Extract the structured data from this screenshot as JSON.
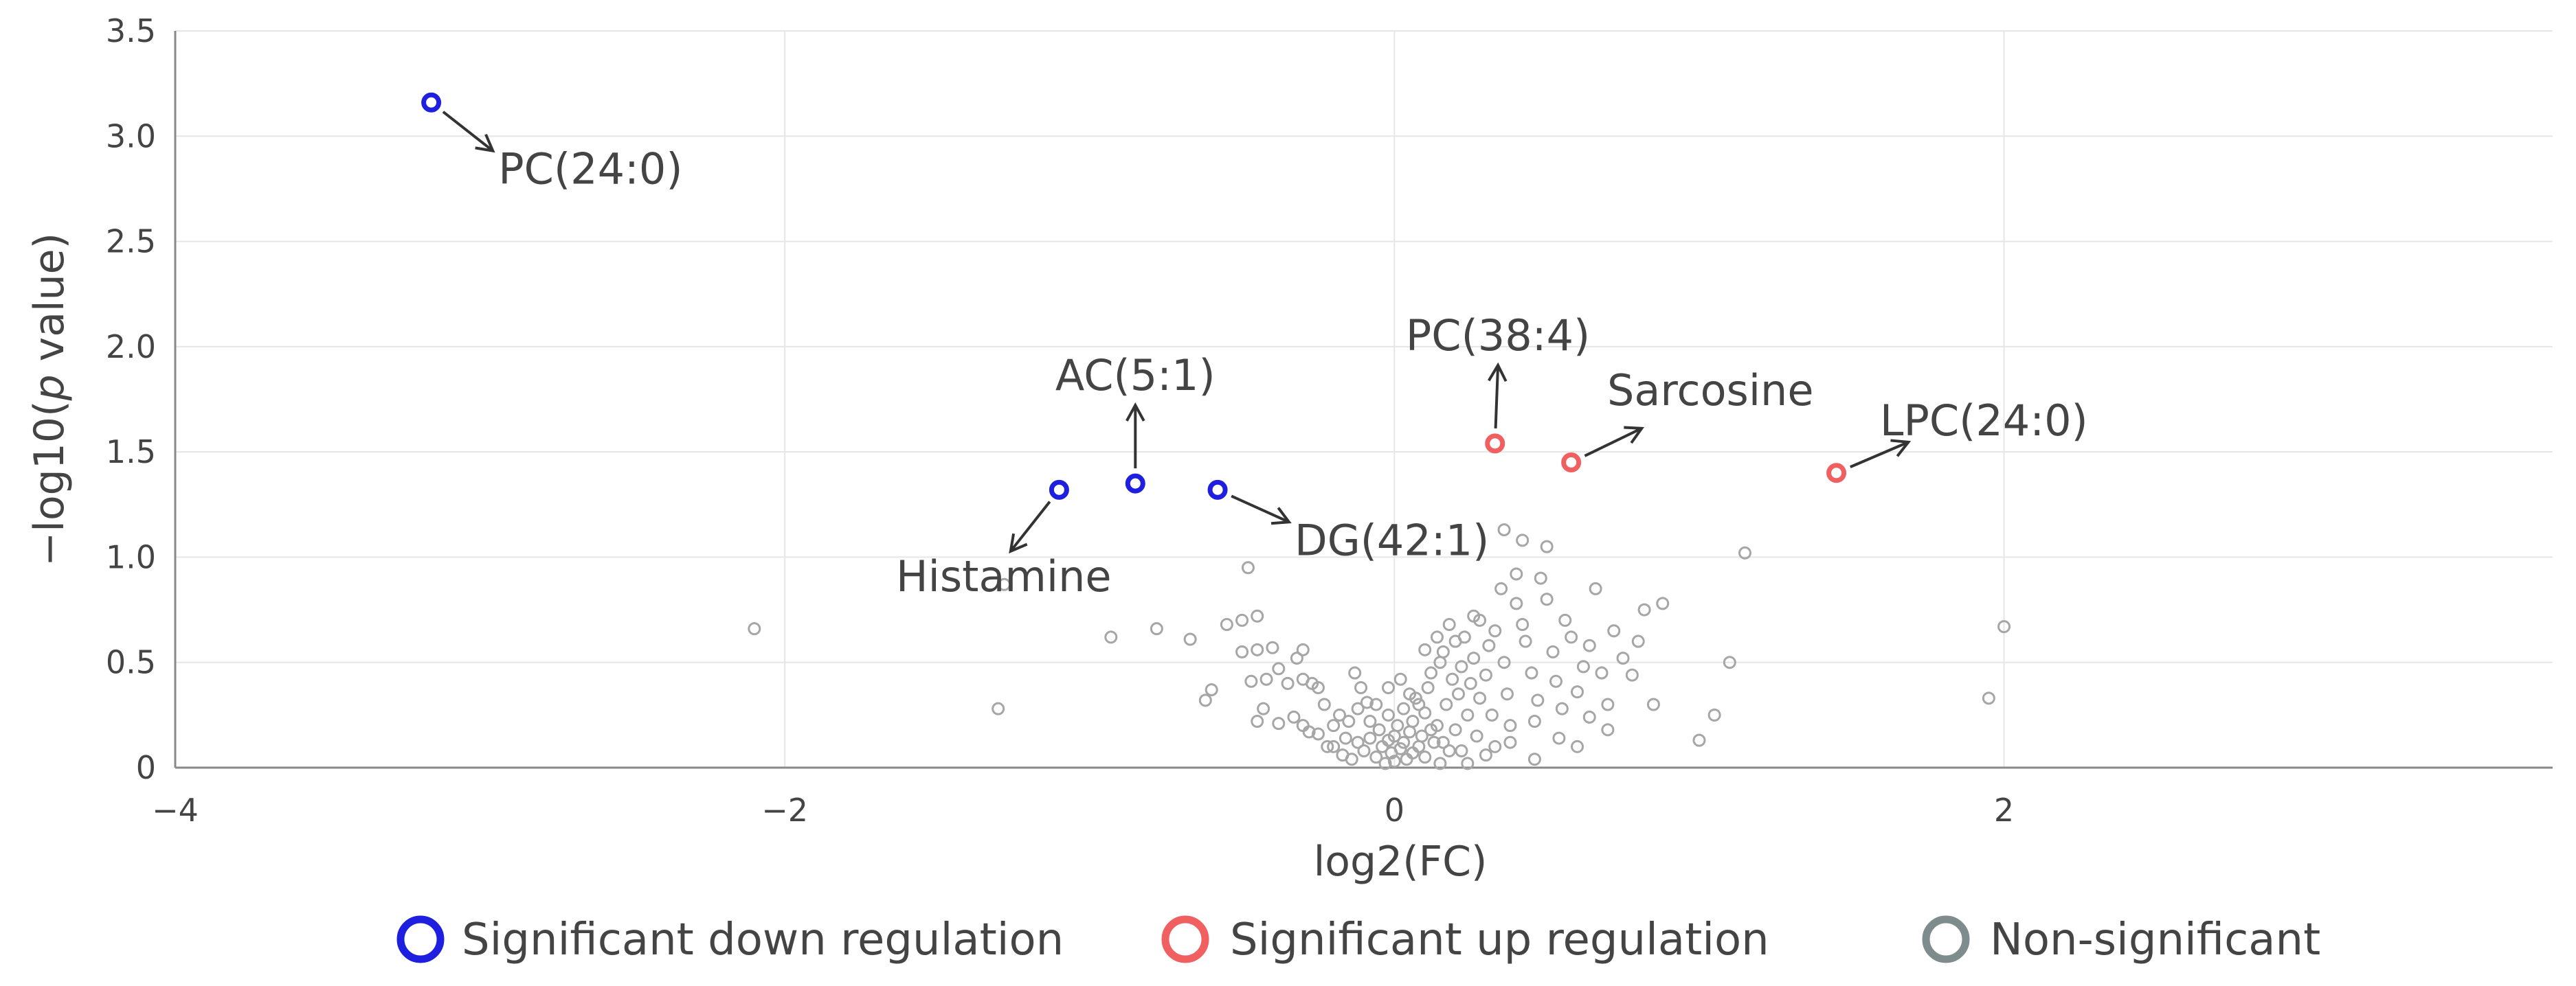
{
  "colors": {
    "down": "#1f1fe0",
    "up": "#f06060",
    "nonsig": "#a6a6a6",
    "nonsig_legend": "#7f8c8d",
    "grid": "#e6e6e6",
    "axis": "#888888",
    "text": "#444444"
  },
  "chart_data": {
    "type": "scatter",
    "title": "",
    "xlabel": "log2(FC)",
    "ylabel_parts": [
      "−log10(",
      "p",
      " value)"
    ],
    "xlim": [
      -4,
      3.8
    ],
    "ylim": [
      0,
      3.5
    ],
    "x_ticks": [
      {
        "value": -4,
        "label": "−4"
      },
      {
        "value": -2,
        "label": "−2"
      },
      {
        "value": 0,
        "label": "0"
      },
      {
        "value": 2,
        "label": "2"
      }
    ],
    "y_ticks": [
      {
        "value": 0,
        "label": "0"
      },
      {
        "value": 0.5,
        "label": "0.5"
      },
      {
        "value": 1,
        "label": "1.0"
      },
      {
        "value": 1.5,
        "label": "1.5"
      },
      {
        "value": 2,
        "label": "2.0"
      },
      {
        "value": 2.5,
        "label": "2.5"
      },
      {
        "value": 3,
        "label": "3.0"
      },
      {
        "value": 3.5,
        "label": "3.5"
      }
    ],
    "grid": true,
    "legend": {
      "position": "bottom",
      "items": [
        {
          "key": "down",
          "label": "Significant down regulation"
        },
        {
          "key": "up",
          "label": "Significant up regulation"
        },
        {
          "key": "nonsig",
          "label": "Non-significant"
        }
      ]
    },
    "significant": [
      {
        "name": "PC(24:0)",
        "x": -3.16,
        "y": 3.16,
        "group": "down",
        "label_dx": 0.22,
        "label_dy": -0.25,
        "anchor": "start"
      },
      {
        "name": "Histamine",
        "x": -1.1,
        "y": 1.32,
        "group": "down",
        "label_dx": -0.18,
        "label_dy": -0.33,
        "anchor": "middle"
      },
      {
        "name": "AC(5:1)",
        "x": -0.85,
        "y": 1.35,
        "group": "down",
        "label_dx": 0.0,
        "label_dy": 0.38,
        "anchor": "middle"
      },
      {
        "name": "DG(42:1)",
        "x": -0.58,
        "y": 1.32,
        "group": "down",
        "label_dx": 0.26,
        "label_dy": -0.17,
        "anchor": "start"
      },
      {
        "name": "PC(38:4)",
        "x": 0.33,
        "y": 1.54,
        "group": "up",
        "label_dx": 0.01,
        "label_dy": 0.38,
        "anchor": "middle"
      },
      {
        "name": "Sarcosine",
        "x": 0.58,
        "y": 1.45,
        "group": "up",
        "label_dx": 0.5,
        "label_dy": 0.35,
        "anchor": "middle"
      },
      {
        "name": "LPC(24:0)",
        "x": 1.45,
        "y": 1.4,
        "group": "up",
        "label_dx": 0.5,
        "label_dy": 0.31,
        "anchor": "middle"
      }
    ],
    "nonsignificant": [
      [
        -2.1,
        0.66
      ],
      [
        -1.3,
        0.28
      ],
      [
        -1.28,
        0.87
      ],
      [
        -0.93,
        0.62
      ],
      [
        -0.78,
        0.66
      ],
      [
        -0.67,
        0.61
      ],
      [
        -0.6,
        0.37
      ],
      [
        -0.62,
        0.32
      ],
      [
        -0.55,
        0.68
      ],
      [
        -0.5,
        0.7
      ],
      [
        -0.45,
        0.72
      ],
      [
        -0.48,
        0.95
      ],
      [
        -0.5,
        0.55
      ],
      [
        -0.45,
        0.56
      ],
      [
        -0.4,
        0.57
      ],
      [
        -0.38,
        0.47
      ],
      [
        -0.42,
        0.42
      ],
      [
        -0.47,
        0.41
      ],
      [
        -0.35,
        0.4
      ],
      [
        -0.32,
        0.52
      ],
      [
        -0.3,
        0.56
      ],
      [
        -0.3,
        0.42
      ],
      [
        -0.27,
        0.4
      ],
      [
        -0.25,
        0.38
      ],
      [
        -0.23,
        0.3
      ],
      [
        -0.43,
        0.28
      ],
      [
        -0.45,
        0.22
      ],
      [
        -0.38,
        0.21
      ],
      [
        -0.33,
        0.24
      ],
      [
        -0.3,
        0.2
      ],
      [
        -0.28,
        0.17
      ],
      [
        -0.25,
        0.16
      ],
      [
        -0.2,
        0.2
      ],
      [
        -0.18,
        0.25
      ],
      [
        -0.15,
        0.22
      ],
      [
        -0.12,
        0.28
      ],
      [
        -0.13,
        0.45
      ],
      [
        -0.11,
        0.38
      ],
      [
        -0.09,
        0.31
      ],
      [
        -0.08,
        0.22
      ],
      [
        -0.2,
        0.1
      ],
      [
        -0.17,
        0.06
      ],
      [
        -0.14,
        0.04
      ],
      [
        -0.12,
        0.12
      ],
      [
        -0.1,
        0.08
      ],
      [
        -0.08,
        0.14
      ],
      [
        -0.06,
        0.05
      ],
      [
        -0.05,
        0.18
      ],
      [
        -0.04,
        0.1
      ],
      [
        -0.03,
        0.02
      ],
      [
        -0.02,
        0.13
      ],
      [
        -0.02,
        0.25
      ],
      [
        -0.01,
        0.07
      ],
      [
        0.0,
        0.15
      ],
      [
        0.0,
        0.03
      ],
      [
        0.01,
        0.2
      ],
      [
        0.02,
        0.09
      ],
      [
        0.03,
        0.28
      ],
      [
        0.03,
        0.12
      ],
      [
        0.04,
        0.04
      ],
      [
        0.05,
        0.17
      ],
      [
        0.06,
        0.07
      ],
      [
        0.06,
        0.22
      ],
      [
        0.07,
        0.33
      ],
      [
        0.08,
        0.1
      ],
      [
        0.09,
        0.15
      ],
      [
        0.1,
        0.05
      ],
      [
        0.1,
        0.26
      ],
      [
        0.11,
        0.38
      ],
      [
        0.12,
        0.45
      ],
      [
        0.13,
        0.12
      ],
      [
        0.14,
        0.2
      ],
      [
        0.15,
        0.5
      ],
      [
        0.16,
        0.55
      ],
      [
        0.17,
        0.3
      ],
      [
        0.18,
        0.08
      ],
      [
        0.19,
        0.42
      ],
      [
        0.2,
        0.6
      ],
      [
        0.2,
        0.18
      ],
      [
        0.21,
        0.35
      ],
      [
        0.22,
        0.48
      ],
      [
        0.23,
        0.62
      ],
      [
        0.24,
        0.25
      ],
      [
        0.25,
        0.4
      ],
      [
        0.26,
        0.52
      ],
      [
        0.27,
        0.15
      ],
      [
        0.28,
        0.7
      ],
      [
        0.28,
        0.33
      ],
      [
        0.3,
        0.44
      ],
      [
        0.3,
        0.06
      ],
      [
        0.31,
        0.58
      ],
      [
        0.32,
        0.25
      ],
      [
        0.33,
        0.65
      ],
      [
        0.35,
        0.85
      ],
      [
        0.36,
        0.5
      ],
      [
        0.37,
        0.35
      ],
      [
        0.38,
        0.12
      ],
      [
        0.4,
        0.78
      ],
      [
        0.4,
        0.92
      ],
      [
        0.42,
        1.08
      ],
      [
        0.43,
        0.6
      ],
      [
        0.45,
        0.45
      ],
      [
        0.46,
        0.22
      ],
      [
        0.47,
        0.32
      ],
      [
        0.48,
        0.9
      ],
      [
        0.5,
        0.8
      ],
      [
        0.5,
        1.05
      ],
      [
        0.52,
        0.55
      ],
      [
        0.53,
        0.41
      ],
      [
        0.55,
        0.28
      ],
      [
        0.56,
        0.7
      ],
      [
        0.58,
        0.62
      ],
      [
        0.6,
        0.36
      ],
      [
        0.6,
        0.1
      ],
      [
        0.62,
        0.48
      ],
      [
        0.64,
        0.24
      ],
      [
        0.66,
        0.85
      ],
      [
        0.68,
        0.45
      ],
      [
        0.7,
        0.3
      ],
      [
        0.72,
        0.65
      ],
      [
        0.75,
        0.52
      ],
      [
        0.78,
        0.44
      ],
      [
        0.8,
        0.6
      ],
      [
        0.82,
        0.75
      ],
      [
        0.85,
        0.3
      ],
      [
        0.88,
        0.78
      ],
      [
        0.38,
        0.2
      ],
      [
        0.33,
        0.1
      ],
      [
        0.22,
        0.08
      ],
      [
        0.15,
        0.02
      ],
      [
        0.12,
        0.18
      ],
      [
        0.08,
        0.3
      ],
      [
        0.18,
        0.68
      ],
      [
        0.26,
        0.72
      ],
      [
        0.14,
        0.62
      ],
      [
        0.1,
        0.56
      ],
      [
        -0.02,
        0.38
      ],
      [
        0.05,
        0.35
      ],
      [
        1.0,
        0.13
      ],
      [
        1.05,
        0.25
      ],
      [
        1.1,
        0.5
      ],
      [
        1.15,
        1.02
      ],
      [
        1.95,
        0.33
      ],
      [
        2.0,
        0.67
      ],
      [
        0.36,
        1.13
      ],
      [
        0.42,
        0.68
      ],
      [
        0.54,
        0.14
      ],
      [
        0.64,
        0.58
      ],
      [
        0.7,
        0.18
      ],
      [
        0.46,
        0.04
      ],
      [
        -0.06,
        0.3
      ],
      [
        -0.16,
        0.14
      ],
      [
        -0.22,
        0.1
      ],
      [
        0.02,
        0.42
      ],
      [
        0.16,
        0.12
      ],
      [
        0.24,
        0.02
      ]
    ]
  }
}
